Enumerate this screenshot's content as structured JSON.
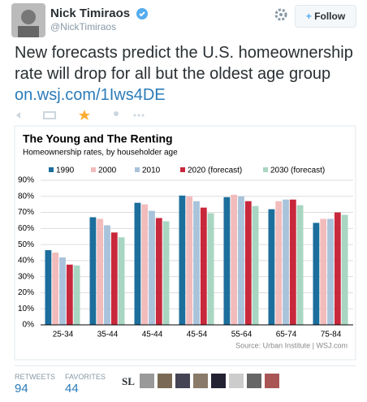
{
  "header": {
    "name": "Nick Timiraos",
    "handle": "@NickTimiraos",
    "follow": "Follow"
  },
  "tweet": {
    "text": "New forecasts predict the U.S. homeownership rate will drop for all but the oldest age group",
    "link": "on.wsj.com/1Iws4DE"
  },
  "stats": {
    "retweets_label": "RETWEETS",
    "retweets": 94,
    "favorites_label": "FAVORITES",
    "favorites": 44,
    "avatar_text": "SL"
  },
  "chart_data": {
    "type": "bar",
    "title": "The Young and The Renting",
    "subtitle": "Homeownership rates, by householder age",
    "source": "Source: Urban Institute | WSJ.com",
    "categories": [
      "25-34",
      "35-44",
      "45-44",
      "45-54",
      "55-64",
      "65-74",
      "75-84"
    ],
    "series": [
      {
        "name": "1990",
        "color": "#1c6e9c",
        "values": [
          46.5,
          67,
          76,
          80.5,
          79.5,
          72,
          63.5
        ]
      },
      {
        "name": "2000",
        "color": "#f2bcbc",
        "values": [
          45,
          66,
          75,
          80,
          81,
          77,
          66
        ]
      },
      {
        "name": "2010",
        "color": "#a9c3db",
        "values": [
          42,
          62,
          71,
          77,
          80,
          78,
          66
        ]
      },
      {
        "name": "2020 (forecast)",
        "color": "#c8283c",
        "values": [
          37.5,
          57.5,
          66.5,
          73,
          77,
          78,
          70
        ]
      },
      {
        "name": "2030 (forecast)",
        "color": "#a8d6c2",
        "values": [
          37,
          54.5,
          64.5,
          69.5,
          74,
          74.5,
          68.5
        ]
      }
    ],
    "ylim": [
      0,
      90
    ],
    "yticks": [
      {
        "value": 0,
        "label": "0%"
      },
      {
        "value": 10,
        "label": "10%"
      },
      {
        "value": 20,
        "label": "20%"
      },
      {
        "value": 30,
        "label": "30%"
      },
      {
        "value": 40,
        "label": "40%"
      },
      {
        "value": 50,
        "label": "50%"
      },
      {
        "value": 60,
        "label": "60%"
      },
      {
        "value": 70,
        "label": "70%"
      },
      {
        "value": 80,
        "label": "80%"
      },
      {
        "value": 90,
        "label": "90%"
      }
    ],
    "grid": true
  }
}
